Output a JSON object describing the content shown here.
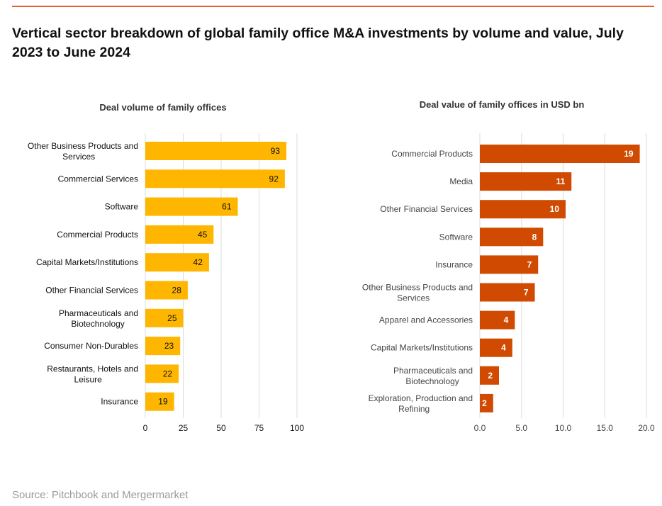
{
  "header": {
    "title": "Vertical sector breakdown of global family office M&A investments by volume and value, July 2023 to June 2024"
  },
  "footer": {
    "source": "Source: Pitchbook and Mergermarket"
  },
  "colors": {
    "volume_bar": "#ffb600",
    "value_bar": "#d04a02",
    "rule": "#e0622d"
  },
  "chart_data": [
    {
      "type": "bar",
      "orientation": "horizontal",
      "title": "Deal volume of family offices",
      "categories": [
        "Other Business Products and Services",
        "Commercial Services",
        "Software",
        "Commercial Products",
        "Capital Markets/Institutions",
        "Other Financial Services",
        "Pharmaceuticals and Biotechnology",
        "Consumer Non-Durables",
        "Restaurants, Hotels and Leisure",
        "Insurance"
      ],
      "values": [
        93,
        92,
        61,
        45,
        42,
        28,
        25,
        23,
        22,
        19
      ],
      "xlim": [
        0,
        100
      ],
      "xticks": [
        "0",
        "25",
        "50",
        "75",
        "100"
      ],
      "grid": true,
      "legend": "none"
    },
    {
      "type": "bar",
      "orientation": "horizontal",
      "title": "Deal value of family offices in USD bn",
      "categories": [
        "Commercial Products",
        "Media",
        "Other Financial Services",
        "Software",
        "Insurance",
        "Other Business Products and Services",
        "Apparel and Accessories",
        "Capital Markets/Institutions",
        "Pharmaceuticals and Biotechnology",
        "Exploration, Production and Refining"
      ],
      "values": [
        19,
        11,
        10,
        8,
        7,
        7,
        4,
        4,
        2,
        2
      ],
      "value_exact": [
        19.2,
        11.0,
        10.3,
        7.6,
        7.0,
        6.6,
        4.2,
        3.9,
        2.3,
        1.6
      ],
      "xlim": [
        0,
        20
      ],
      "xticks": [
        "0.0",
        "5.0",
        "10.0",
        "15.0",
        "20.0"
      ],
      "grid": true,
      "legend": "none"
    }
  ]
}
